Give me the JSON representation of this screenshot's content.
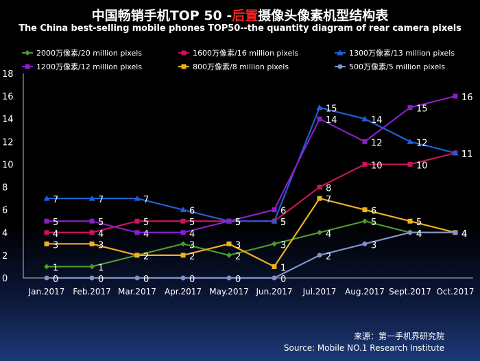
{
  "title": {
    "part1": "中国畅销手机TOP 50 -",
    "highlight": "后置",
    "part2": "摄像头像素机型结构表",
    "subtitle": "The China best-selling mobile phones TOP50--the quantity diagram of rear camera pixels"
  },
  "source": {
    "cn": "来源：第一手机界研究院",
    "en": "Source: Mobile NO.1 Research Institute"
  },
  "chart_data": {
    "type": "line",
    "categories": [
      "Jan.2017",
      "Feb.2017",
      "Mar.2017",
      "Apr.2017",
      "May.2017",
      "Jun.2017",
      "Jul.2017",
      "Aug.2017",
      "Sept.2017",
      "Oct.2017"
    ],
    "ylim": [
      0,
      18
    ],
    "yticks": [
      0,
      2,
      4,
      6,
      8,
      10,
      12,
      14,
      16,
      18
    ],
    "grid": false,
    "legend_position": "top",
    "series": [
      {
        "name": "2000万像素/20 million pixels",
        "color": "#4f9a2c",
        "marker": "diamond",
        "values": [
          1,
          1,
          2,
          3,
          2,
          3,
          4,
          5,
          4,
          4
        ]
      },
      {
        "name": "1600万像素/16 million pixels",
        "color": "#c8145e",
        "marker": "square",
        "values": [
          4,
          4,
          5,
          5,
          5,
          5,
          8,
          10,
          10,
          11
        ]
      },
      {
        "name": "1300万像素/13 million pixels",
        "color": "#1f5fd8",
        "marker": "triangle",
        "values": [
          7,
          7,
          7,
          6,
          5,
          5,
          15,
          14,
          12,
          11
        ]
      },
      {
        "name": "1200万像素/12 million pixels",
        "color": "#8a1ec8",
        "marker": "square",
        "values": [
          5,
          5,
          4,
          4,
          5,
          6,
          14,
          12,
          15,
          16
        ]
      },
      {
        "name": "800万像素/8 million pixels",
        "color": "#f0b020",
        "marker": "square",
        "values": [
          3,
          3,
          2,
          2,
          3,
          1,
          7,
          6,
          5,
          4
        ]
      },
      {
        "name": "500万像素/5 million pixels",
        "color": "#7f93c6",
        "marker": "circle",
        "values": [
          0,
          0,
          0,
          0,
          0,
          0,
          2,
          3,
          4,
          4
        ]
      }
    ]
  }
}
